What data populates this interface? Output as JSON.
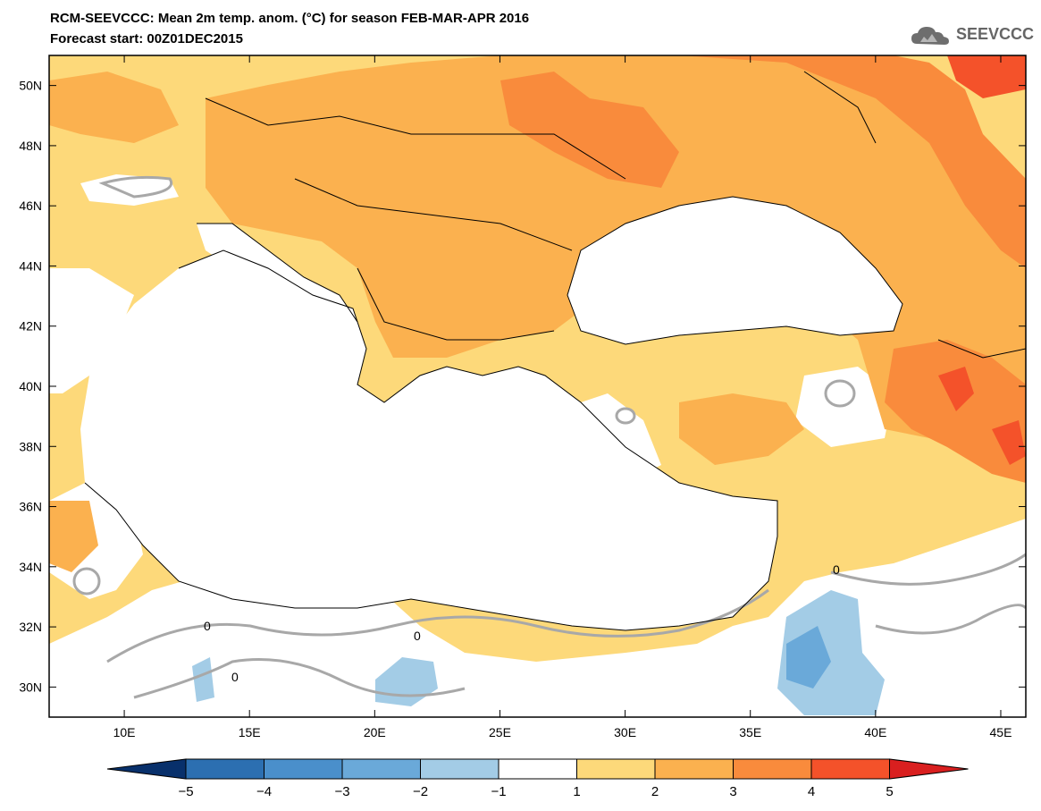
{
  "header": {
    "title": "RCM-SEEVCCC: Mean 2m temp. anom. (°C) for season FEB-MAR-APR 2016",
    "subtitle": "Forecast start: 00Z01DEC2015",
    "logo_text": "SEEVCCC"
  },
  "map": {
    "projection": "lat-lon",
    "lon_range": [
      7,
      46
    ],
    "lat_range": [
      29,
      51
    ],
    "lon_ticks": [
      "10E",
      "15E",
      "20E",
      "25E",
      "30E",
      "35E",
      "40E",
      "45E"
    ],
    "lat_ticks": [
      "30N",
      "32N",
      "34N",
      "36N",
      "38N",
      "40N",
      "42N",
      "44N",
      "46N",
      "48N",
      "50N"
    ],
    "contour_label": "0"
  },
  "colorbar": {
    "labels": [
      "−5",
      "−4",
      "−3",
      "−2",
      "−1",
      "1",
      "2",
      "3",
      "4",
      "5"
    ],
    "colors": [
      "#08306b",
      "#2c6fb1",
      "#4a8fcb",
      "#6aa9d9",
      "#a3cce6",
      "#ffffff",
      "#fdd97a",
      "#fbb14f",
      "#f98b3c",
      "#f4522a",
      "#d91f1f"
    ]
  },
  "colors": {
    "sea": "#ffffff",
    "anom_1_2": "#fdd97a",
    "anom_2_3": "#fbb14f",
    "anom_3_4": "#f98b3c",
    "anom_4_5": "#f4522a",
    "anom_m1_m2": "#a3cce6",
    "anom_m2_m3": "#6aa9d9",
    "contour_zero": "#a8a8a8"
  }
}
